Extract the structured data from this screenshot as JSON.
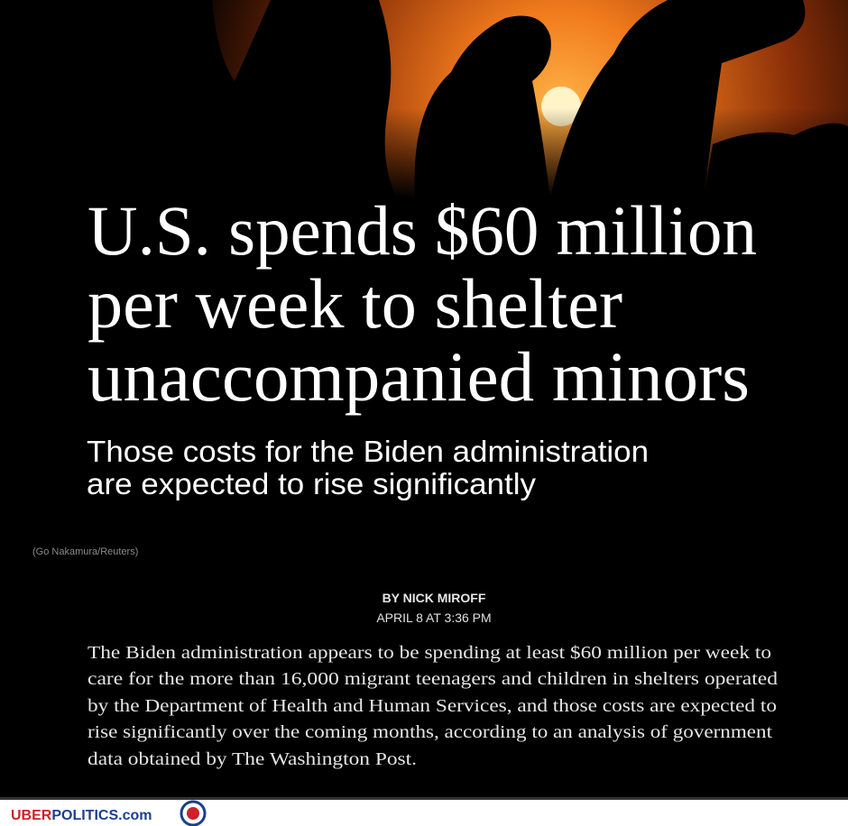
{
  "headline": {
    "lines": [
      "U.S. spends $60 million",
      "per week to shelter",
      "unaccompanied minors"
    ]
  },
  "subtitle": {
    "lines": [
      "Those costs for the Biden administration",
      "are expected to rise significantly"
    ]
  },
  "photo_credit": "(Go Nakamura/Reuters)",
  "byline": "BY NICK MIROFF",
  "dateline": "APRIL 8 AT 3:36 PM",
  "body": {
    "lines": [
      "The Biden administration appears to be spending at least $60 million per week to",
      "care for the more than 16,000 migrant teenagers and children in shelters operated",
      "by the Department of Health and Human Services, and those costs are expected to",
      "rise significantly over the coming months, according to an analysis of government",
      "data obtained by The Washington Post."
    ]
  },
  "watermark": {
    "part1": "UBER",
    "part2": "POLITICS.com"
  }
}
